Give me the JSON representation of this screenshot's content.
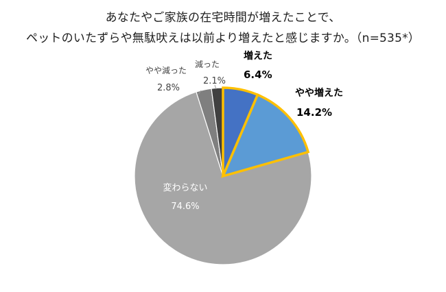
{
  "chart_data": {
    "type": "pie",
    "title_lines": [
      "あなたやご家族の在宅時間が増えたことで、",
      "ペットのいたずらや無駄吠えは以前より増えたと感じますか。（n=535*）"
    ],
    "slices": [
      {
        "label": "増えた",
        "value": 6.4,
        "value_label": "6.4%",
        "color": "#4472c4",
        "highlight": true
      },
      {
        "label": "やや増えた",
        "value": 14.2,
        "value_label": "14.2%",
        "color": "#5b9bd5",
        "highlight": true
      },
      {
        "label": "変わらない",
        "value": 74.6,
        "value_label": "74.6%",
        "color": "#a6a6a6",
        "highlight": false
      },
      {
        "label": "やや減った",
        "value": 2.8,
        "value_label": "2.8%",
        "color": "#7f7f7f",
        "highlight": false
      },
      {
        "label": "減った",
        "value": 2.1,
        "value_label": "2.1%",
        "color": "#404040",
        "highlight": false
      }
    ],
    "highlight_color": "#ffc000",
    "start": "top, clockwise"
  }
}
